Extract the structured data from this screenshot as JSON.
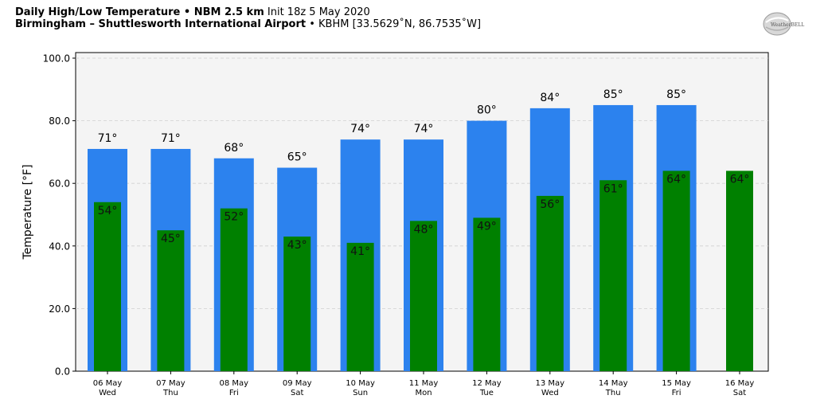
{
  "header": {
    "title_bold": "Daily High/Low Temperature • NBM 2.5 km",
    "title_rest": " Init 18z 5 May 2020",
    "location_bold": "Birmingham – Shuttlesworth International Airport",
    "location_rest": " • KBHM [33.5629˚N, 86.7535˚W]"
  },
  "logo": {
    "text": "WeatherBELL"
  },
  "chart_data": {
    "type": "bar",
    "ylabel": "Temperature [°F]",
    "ylim": [
      0,
      100
    ],
    "yticks": [
      0,
      20,
      40,
      60,
      80,
      100
    ],
    "ytick_labels": [
      "0.0",
      "20.0",
      "40.0",
      "60.0",
      "80.0",
      "100.0"
    ],
    "grid": true,
    "categories": [
      "06 May",
      "07 May",
      "08 May",
      "09 May",
      "10 May",
      "11 May",
      "12 May",
      "13 May",
      "14 May",
      "15 May",
      "16 May"
    ],
    "weekdays": [
      "Wed",
      "Thu",
      "Fri",
      "Sat",
      "Sun",
      "Mon",
      "Tue",
      "Wed",
      "Thu",
      "Fri",
      "Sat"
    ],
    "series": [
      {
        "values": [
          71,
          71,
          68,
          65,
          74,
          74,
          80,
          84,
          85,
          85,
          null
        ],
        "labels": [
          "71°",
          "71°",
          "68°",
          "65°",
          "74°",
          "74°",
          "80°",
          "84°",
          "85°",
          "85°",
          ""
        ],
        "color": "#2c82ee"
      },
      {
        "values": [
          54,
          45,
          52,
          43,
          41,
          48,
          49,
          56,
          61,
          64,
          64
        ],
        "labels": [
          "54°",
          "45°",
          "52°",
          "43°",
          "41°",
          "48°",
          "49°",
          "56°",
          "61°",
          "64°",
          "64°"
        ],
        "color": "#008000"
      }
    ]
  }
}
